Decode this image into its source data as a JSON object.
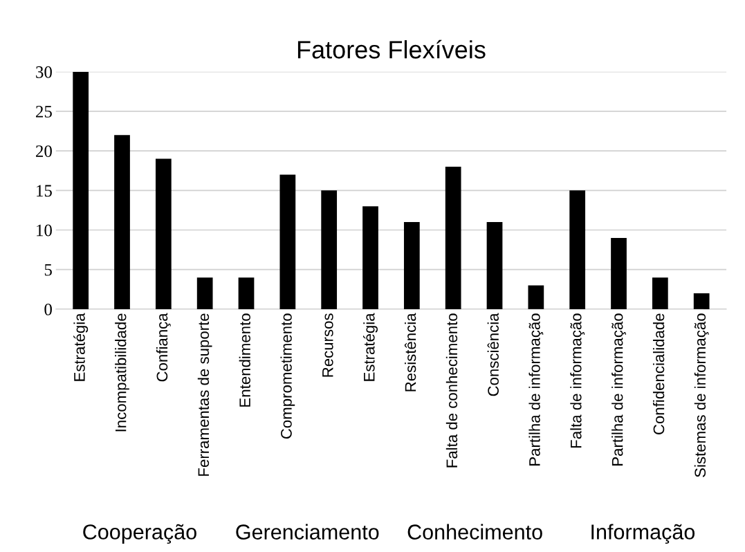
{
  "chart_data": {
    "type": "bar",
    "title": "Fatores Flexíveis",
    "categories": [
      "Estratégia",
      "Incompatibilidade",
      "Confiança",
      "Ferramentas de suporte",
      "Entendimento",
      "Comprometimento",
      "Recursos",
      "Estratégia",
      "Resistência",
      "Falta de conhecimento",
      "Consciência",
      "Partilha de informação",
      "Falta de informação",
      "Partilha de informação",
      "Confidencialidade",
      "Sistemas de informação"
    ],
    "values": [
      30,
      22,
      19,
      4,
      4,
      17,
      15,
      13,
      11,
      18,
      11,
      3,
      15,
      9,
      4,
      2
    ],
    "color": "#000000",
    "ylim": [
      0,
      30
    ],
    "yticks": [
      0,
      5,
      10,
      15,
      20,
      25,
      30
    ],
    "grid": "y",
    "annotations": [
      "Cooperação",
      "Gerenciamento",
      "Conhecimento",
      "Informação"
    ]
  }
}
